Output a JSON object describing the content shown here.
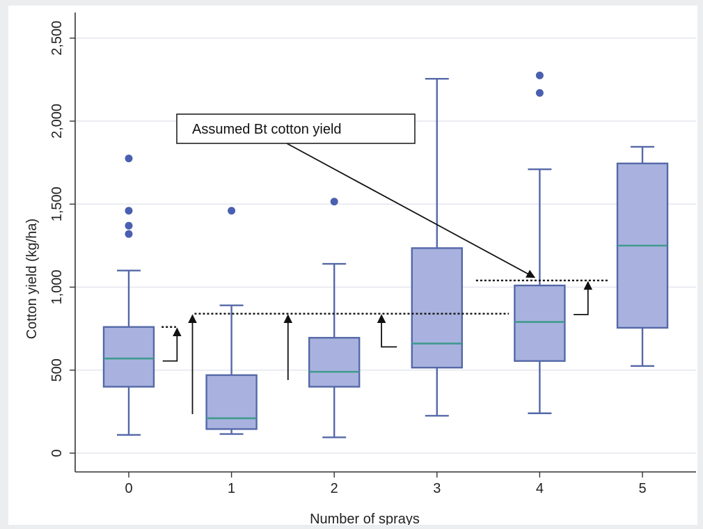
{
  "chart_data": {
    "type": "box",
    "title": "",
    "xlabel": "Number of sprays",
    "ylabel": "Cotton yield (kg/ha)",
    "ylim": [
      0,
      2500
    ],
    "yticks": [
      0,
      500,
      1000,
      1500,
      2000,
      2500
    ],
    "ytick_labels": [
      "0",
      "500",
      "1,000",
      "1,500",
      "2,000",
      "2,500"
    ],
    "categories": [
      "0",
      "1",
      "2",
      "3",
      "4",
      "5"
    ],
    "grid": true,
    "colors": {
      "box_fill": "#a9b2de",
      "box_edge": "#5568a8",
      "median": "#3f9a8e",
      "outlier": "#4a5fb0",
      "grid": "#e3e6ee"
    },
    "boxes": [
      {
        "category": "0",
        "whisker_low": 110,
        "q1": 400,
        "median": 570,
        "q3": 760,
        "whisker_high": 1100,
        "outliers": [
          1320,
          1370,
          1460,
          1775
        ]
      },
      {
        "category": "1",
        "whisker_low": 115,
        "q1": 145,
        "median": 210,
        "q3": 470,
        "whisker_high": 890,
        "outliers": [
          1460
        ]
      },
      {
        "category": "2",
        "whisker_low": 95,
        "q1": 400,
        "median": 490,
        "q3": 695,
        "whisker_high": 1140,
        "outliers": [
          1515
        ]
      },
      {
        "category": "3",
        "whisker_low": 225,
        "q1": 515,
        "median": 660,
        "q3": 1235,
        "whisker_high": 2255,
        "outliers": []
      },
      {
        "category": "4",
        "whisker_low": 240,
        "q1": 555,
        "median": 790,
        "q3": 1010,
        "whisker_high": 1710,
        "outliers": [
          2170,
          2275
        ]
      },
      {
        "category": "5",
        "whisker_low": 525,
        "q1": 755,
        "median": 1250,
        "q3": 1745,
        "whisker_high": 1845,
        "outliers": []
      }
    ],
    "annotations": {
      "callout_label": "Assumed Bt cotton yield",
      "reference_lines": [
        {
          "x_from": 0.32,
          "x_to": 0.46,
          "y": 760
        },
        {
          "x_from": 0.64,
          "x_to": 3.7,
          "y": 840
        },
        {
          "x_from": 3.38,
          "x_to": 4.68,
          "y": 1040
        }
      ],
      "gain_arrows": [
        {
          "x_base": 0.33,
          "x_tip": 0.47,
          "y_from": 555,
          "y_to": 760
        },
        {
          "x_base": 0.62,
          "x_tip": 0.62,
          "y_from": 235,
          "y_to": 840
        },
        {
          "x_base": 1.55,
          "x_tip": 1.55,
          "y_from": 440,
          "y_to": 840
        },
        {
          "x_base": 2.61,
          "x_tip": 2.46,
          "y_from": 640,
          "y_to": 840
        },
        {
          "x_base": 4.33,
          "x_tip": 4.47,
          "y_from": 835,
          "y_to": 1040
        }
      ]
    }
  }
}
